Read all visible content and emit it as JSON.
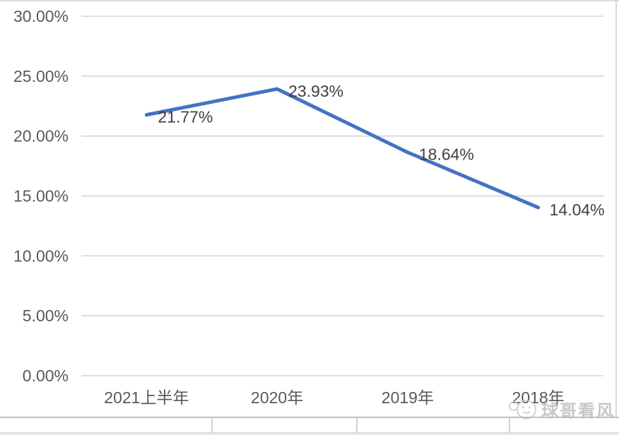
{
  "chart_data": {
    "type": "line",
    "title": "",
    "xlabel": "",
    "ylabel": "",
    "categories": [
      "2021上半年",
      "2020年",
      "2019年",
      "2018年"
    ],
    "values": [
      21.77,
      23.93,
      18.64,
      14.04
    ],
    "data_labels": [
      "21.77%",
      "23.93%",
      "18.64%",
      "14.04%"
    ],
    "y_ticks": [
      {
        "value": 0,
        "label": "0.00%"
      },
      {
        "value": 5,
        "label": "5.00%"
      },
      {
        "value": 10,
        "label": "10.00%"
      },
      {
        "value": 15,
        "label": "15.00%"
      },
      {
        "value": 20,
        "label": "20.00%"
      },
      {
        "value": 25,
        "label": "25.00%"
      },
      {
        "value": 30,
        "label": "30.00%"
      }
    ],
    "ylim": [
      0,
      30
    ],
    "grid": true,
    "legend": false,
    "colors": {
      "line": "#4472C4",
      "gridline": "#d9d9d9",
      "axis_label": "#595959",
      "data_label": "#404040"
    }
  },
  "watermark": {
    "text": "球哥看风",
    "icon": "ball-face-logo",
    "color": "#c6c6cb"
  }
}
